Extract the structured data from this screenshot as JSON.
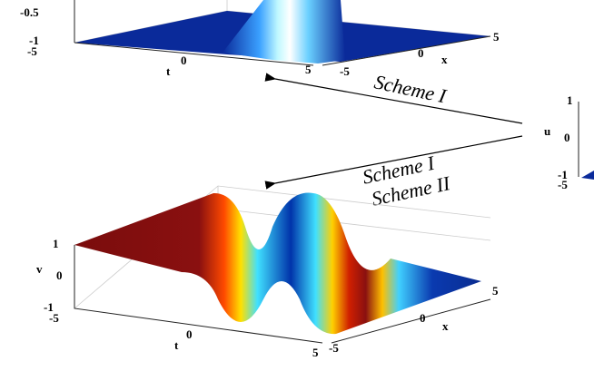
{
  "top_plot": {
    "z_ticks": [
      "-0.5",
      "-1"
    ],
    "t_label": "t",
    "t_ticks": [
      "-5",
      "0",
      "5"
    ],
    "x_label": "x",
    "x_ticks": [
      "5",
      "0",
      "-5"
    ]
  },
  "arrows": [
    {
      "labels": [
        "Scheme I"
      ]
    },
    {
      "labels": [
        "Scheme I",
        "Scheme II"
      ]
    }
  ],
  "right_plot": {
    "z_label": "u",
    "z_ticks": [
      "1",
      "0",
      "-1"
    ],
    "t_ticks": [
      "-5"
    ]
  },
  "bottom_plot": {
    "z_label": "v",
    "z_ticks": [
      "1",
      "0",
      "-1"
    ],
    "t_label": "t",
    "t_ticks": [
      "-5",
      "0",
      "5"
    ],
    "x_label": "x",
    "x_ticks": [
      "5",
      "0",
      "-5"
    ]
  }
}
